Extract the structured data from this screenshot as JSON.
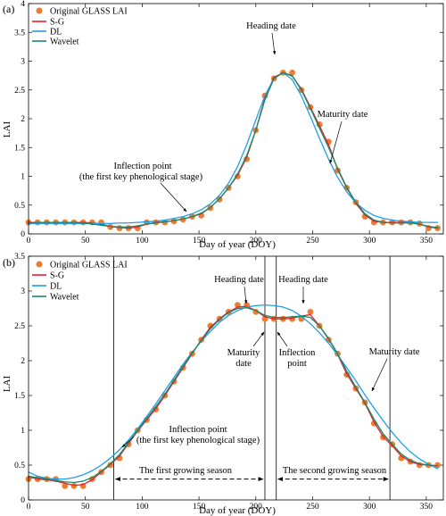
{
  "colors": {
    "observed": "#ed7d31",
    "sg": "#e8202a",
    "dl": "#1e9fe8",
    "wavelet": "#138a6c",
    "axis": "#000000"
  },
  "chart_data": [
    {
      "type": "line",
      "panel_label": "(a)",
      "xlabel": "Day of year (DOY)",
      "ylabel": "LAI",
      "xlim": [
        0,
        365
      ],
      "ylim": [
        0,
        4
      ],
      "xticks": [
        0,
        50,
        100,
        150,
        200,
        250,
        300,
        350
      ],
      "yticks": [
        0,
        0.5,
        1,
        1.5,
        2,
        2.5,
        3,
        3.5,
        4
      ],
      "ytick_labels": [
        "0",
        "0.5",
        "1",
        "1.5",
        "2",
        "2.5",
        "3",
        "3.5",
        "4"
      ],
      "legend": {
        "position": "top-left",
        "entries": [
          "Original GLASS LAI",
          "S-G",
          "DL",
          "Wavelet"
        ]
      },
      "series": [
        {
          "name": "Original GLASS LAI",
          "kind": "scatter",
          "x": [
            0,
            8,
            16,
            24,
            32,
            40,
            48,
            56,
            64,
            72,
            80,
            88,
            96,
            104,
            112,
            120,
            128,
            136,
            144,
            152,
            160,
            168,
            176,
            184,
            192,
            200,
            208,
            216,
            224,
            232,
            240,
            248,
            256,
            264,
            272,
            280,
            288,
            296,
            304,
            312,
            320,
            328,
            336,
            344,
            352,
            360
          ],
          "y": [
            0.2,
            0.2,
            0.2,
            0.2,
            0.2,
            0.2,
            0.2,
            0.2,
            0.2,
            0.12,
            0.1,
            0.1,
            0.1,
            0.2,
            0.2,
            0.2,
            0.22,
            0.25,
            0.3,
            0.32,
            0.45,
            0.6,
            0.8,
            1.0,
            1.3,
            1.8,
            2.4,
            2.7,
            2.8,
            2.8,
            2.5,
            2.2,
            1.9,
            1.6,
            1.1,
            0.8,
            0.55,
            0.3,
            0.2,
            0.2,
            0.2,
            0.2,
            0.2,
            0.18,
            0.1,
            0.1
          ]
        },
        {
          "name": "S-G",
          "kind": "line",
          "x": [
            0,
            8,
            16,
            24,
            32,
            40,
            48,
            56,
            64,
            72,
            80,
            88,
            96,
            104,
            112,
            120,
            128,
            136,
            144,
            152,
            160,
            168,
            176,
            184,
            192,
            200,
            208,
            216,
            224,
            232,
            240,
            248,
            256,
            264,
            272,
            280,
            288,
            296,
            304,
            312,
            320,
            328,
            336,
            344,
            352,
            360
          ],
          "y": [
            0.2,
            0.2,
            0.2,
            0.2,
            0.2,
            0.2,
            0.2,
            0.19,
            0.17,
            0.13,
            0.11,
            0.1,
            0.12,
            0.17,
            0.2,
            0.21,
            0.23,
            0.26,
            0.3,
            0.35,
            0.46,
            0.61,
            0.8,
            1.02,
            1.33,
            1.8,
            2.36,
            2.72,
            2.8,
            2.74,
            2.52,
            2.2,
            1.88,
            1.55,
            1.12,
            0.8,
            0.53,
            0.33,
            0.22,
            0.2,
            0.2,
            0.2,
            0.2,
            0.17,
            0.12,
            0.1
          ]
        },
        {
          "name": "DL",
          "kind": "line",
          "x": [
            0,
            8,
            16,
            24,
            32,
            40,
            48,
            56,
            64,
            72,
            80,
            88,
            96,
            104,
            112,
            120,
            128,
            136,
            144,
            152,
            160,
            168,
            176,
            184,
            192,
            200,
            208,
            216,
            224,
            232,
            240,
            248,
            256,
            264,
            272,
            280,
            288,
            296,
            304,
            312,
            320,
            328,
            336,
            344,
            352,
            360
          ],
          "y": [
            0.18,
            0.18,
            0.18,
            0.18,
            0.18,
            0.18,
            0.18,
            0.18,
            0.18,
            0.18,
            0.19,
            0.19,
            0.2,
            0.21,
            0.22,
            0.24,
            0.27,
            0.3,
            0.35,
            0.42,
            0.52,
            0.67,
            0.88,
            1.17,
            1.55,
            1.98,
            2.4,
            2.7,
            2.8,
            2.68,
            2.4,
            2.04,
            1.66,
            1.3,
            0.98,
            0.73,
            0.54,
            0.41,
            0.32,
            0.27,
            0.24,
            0.22,
            0.21,
            0.2,
            0.2,
            0.2
          ]
        },
        {
          "name": "Wavelet",
          "kind": "line",
          "x": [
            0,
            8,
            16,
            24,
            32,
            40,
            48,
            56,
            64,
            72,
            80,
            88,
            96,
            104,
            112,
            120,
            128,
            136,
            144,
            152,
            160,
            168,
            176,
            184,
            192,
            200,
            208,
            216,
            224,
            232,
            240,
            248,
            256,
            264,
            272,
            280,
            288,
            296,
            304,
            312,
            320,
            328,
            336,
            344,
            352,
            360
          ],
          "y": [
            0.19,
            0.2,
            0.2,
            0.2,
            0.2,
            0.2,
            0.19,
            0.17,
            0.15,
            0.13,
            0.12,
            0.12,
            0.14,
            0.17,
            0.19,
            0.21,
            0.23,
            0.26,
            0.3,
            0.36,
            0.46,
            0.61,
            0.8,
            1.04,
            1.36,
            1.8,
            2.33,
            2.7,
            2.8,
            2.75,
            2.5,
            2.18,
            1.84,
            1.5,
            1.14,
            0.81,
            0.55,
            0.35,
            0.24,
            0.2,
            0.19,
            0.19,
            0.19,
            0.17,
            0.13,
            0.11
          ]
        }
      ],
      "annotations": [
        {
          "text": "Heading date",
          "target": [
            222,
            2.8
          ]
        },
        {
          "text": "Maturity date",
          "target": [
            266,
            1.1
          ]
        },
        {
          "text": "Inflection point",
          "text2": "(the first key phenological stage)",
          "target": [
            148,
            0.32
          ]
        }
      ]
    },
    {
      "type": "line",
      "panel_label": "(b)",
      "xlabel": "Day of year (DOY)",
      "ylabel": "LAI",
      "xlim": [
        0,
        365
      ],
      "ylim": [
        0,
        3.5
      ],
      "xticks": [
        0,
        50,
        100,
        150,
        200,
        250,
        300,
        350
      ],
      "yticks": [
        0,
        0.5,
        1,
        1.5,
        2,
        2.5,
        3,
        3.5
      ],
      "ytick_labels": [
        "0",
        "0.5",
        "1",
        "1.5",
        "2",
        "2.5",
        "3",
        "3.5"
      ],
      "legend": {
        "position": "top-left",
        "entries": [
          "Original GLASS LAI",
          "S-G",
          "DL",
          "Wavelet"
        ]
      },
      "series": [
        {
          "name": "Original GLASS LAI",
          "kind": "scatter",
          "x": [
            0,
            8,
            16,
            24,
            32,
            40,
            48,
            56,
            64,
            72,
            80,
            88,
            96,
            104,
            112,
            120,
            128,
            136,
            144,
            152,
            160,
            168,
            176,
            184,
            192,
            200,
            208,
            216,
            224,
            232,
            240,
            248,
            256,
            264,
            272,
            280,
            288,
            296,
            304,
            312,
            320,
            328,
            336,
            344,
            352,
            360
          ],
          "y": [
            0.3,
            0.3,
            0.3,
            0.3,
            0.2,
            0.2,
            0.2,
            0.3,
            0.4,
            0.5,
            0.6,
            0.8,
            1.0,
            1.15,
            1.3,
            1.5,
            1.7,
            1.9,
            2.1,
            2.3,
            2.5,
            2.6,
            2.7,
            2.8,
            2.8,
            2.7,
            2.6,
            2.6,
            2.6,
            2.6,
            2.6,
            2.7,
            2.5,
            2.3,
            2.1,
            1.8,
            1.6,
            1.4,
            1.1,
            0.9,
            0.8,
            0.6,
            0.55,
            0.5,
            0.5,
            0.5
          ]
        },
        {
          "name": "S-G",
          "kind": "line",
          "x": [
            0,
            8,
            16,
            24,
            32,
            40,
            48,
            56,
            64,
            72,
            80,
            88,
            96,
            104,
            112,
            120,
            128,
            136,
            144,
            152,
            160,
            168,
            176,
            184,
            192,
            200,
            208,
            216,
            224,
            232,
            240,
            248,
            256,
            264,
            272,
            280,
            288,
            296,
            304,
            312,
            320,
            328,
            336,
            344,
            352,
            360
          ],
          "y": [
            0.33,
            0.3,
            0.29,
            0.27,
            0.24,
            0.21,
            0.22,
            0.29,
            0.4,
            0.51,
            0.63,
            0.81,
            0.99,
            1.15,
            1.31,
            1.5,
            1.7,
            1.9,
            2.1,
            2.3,
            2.48,
            2.6,
            2.7,
            2.77,
            2.78,
            2.72,
            2.63,
            2.6,
            2.6,
            2.61,
            2.64,
            2.66,
            2.5,
            2.31,
            2.09,
            1.81,
            1.6,
            1.39,
            1.12,
            0.91,
            0.78,
            0.63,
            0.55,
            0.51,
            0.5,
            0.49
          ]
        },
        {
          "name": "DL",
          "kind": "line",
          "x": [
            0,
            8,
            16,
            24,
            32,
            40,
            48,
            56,
            64,
            72,
            80,
            88,
            96,
            104,
            112,
            120,
            128,
            136,
            144,
            152,
            160,
            168,
            176,
            184,
            192,
            200,
            208,
            216,
            224,
            232,
            240,
            248,
            256,
            264,
            272,
            280,
            288,
            296,
            304,
            312,
            320,
            328,
            336,
            344,
            352,
            360
          ],
          "y": [
            0.4,
            0.34,
            0.31,
            0.3,
            0.3,
            0.32,
            0.36,
            0.42,
            0.5,
            0.6,
            0.72,
            0.86,
            1.02,
            1.2,
            1.38,
            1.57,
            1.76,
            1.95,
            2.12,
            2.28,
            2.42,
            2.55,
            2.65,
            2.72,
            2.77,
            2.79,
            2.8,
            2.79,
            2.77,
            2.72,
            2.64,
            2.53,
            2.4,
            2.25,
            2.08,
            1.9,
            1.71,
            1.51,
            1.32,
            1.14,
            0.97,
            0.82,
            0.69,
            0.59,
            0.51,
            0.45
          ]
        },
        {
          "name": "Wavelet",
          "kind": "line",
          "x": [
            0,
            8,
            16,
            24,
            32,
            40,
            48,
            56,
            64,
            72,
            80,
            88,
            96,
            104,
            112,
            120,
            128,
            136,
            144,
            152,
            160,
            168,
            176,
            184,
            192,
            200,
            208,
            216,
            224,
            232,
            240,
            248,
            256,
            264,
            272,
            280,
            288,
            296,
            304,
            312,
            320,
            328,
            336,
            344,
            352,
            360
          ],
          "y": [
            0.34,
            0.32,
            0.3,
            0.28,
            0.26,
            0.25,
            0.27,
            0.32,
            0.41,
            0.52,
            0.65,
            0.82,
            1.0,
            1.17,
            1.34,
            1.52,
            1.72,
            1.92,
            2.11,
            2.29,
            2.46,
            2.59,
            2.69,
            2.75,
            2.76,
            2.72,
            2.65,
            2.62,
            2.62,
            2.63,
            2.64,
            2.62,
            2.5,
            2.32,
            2.1,
            1.85,
            1.62,
            1.4,
            1.16,
            0.95,
            0.8,
            0.66,
            0.57,
            0.52,
            0.5,
            0.49
          ]
        }
      ],
      "vlines": [
        75,
        208,
        218,
        318
      ],
      "annotations": [
        {
          "text": "Heading date",
          "target": [
            192,
            2.78
          ]
        },
        {
          "text": "Heading date",
          "target": [
            242,
            2.68
          ]
        },
        {
          "text": "Maturity",
          "text2": "date",
          "target": [
            210,
            2.6
          ]
        },
        {
          "text": "Inflection",
          "text2": "point",
          "target": [
            220,
            2.6
          ]
        },
        {
          "text": "Maturity date",
          "target": [
            298,
            1.4
          ]
        },
        {
          "text": "Inflection point",
          "text2": "(the first key phenological stage)",
          "target": [
            78,
            0.6
          ]
        }
      ],
      "seasons": [
        {
          "label": "The first growing season",
          "x0": 75,
          "x1": 208,
          "y": 0.3
        },
        {
          "label": "The second growing season",
          "x0": 218,
          "x1": 318,
          "y": 0.3
        }
      ]
    }
  ]
}
